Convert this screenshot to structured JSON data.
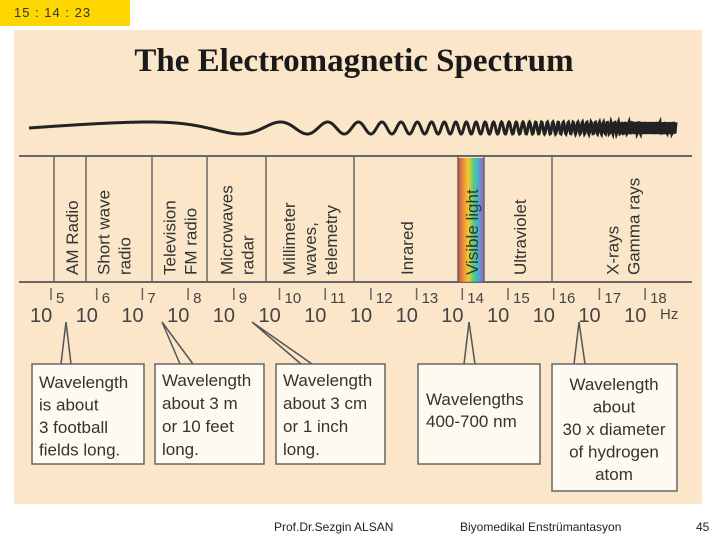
{
  "clock": "15 : 14 : 23",
  "title": "The Electromagnetic Spectrum",
  "bands": [
    {
      "lines": [
        "AM Radio"
      ]
    },
    {
      "lines": [
        "Short wave",
        "radio"
      ]
    },
    {
      "lines": [
        "Television",
        "FM radio"
      ]
    },
    {
      "lines": [
        "Microwaves",
        "radar"
      ]
    },
    {
      "lines": [
        "Millimeter",
        "waves,",
        "telemetry"
      ]
    },
    {
      "lines": [
        "Inrared"
      ]
    },
    {
      "lines": [
        "Visible light"
      ]
    },
    {
      "lines": [
        "Ultraviolet"
      ]
    },
    {
      "lines": [
        "X-rays",
        "Gamma rays"
      ]
    }
  ],
  "exponents": [
    "5",
    "6",
    "7",
    "8",
    "9",
    "10",
    "11",
    "12",
    "13",
    "14",
    "15",
    "16",
    "17",
    "18"
  ],
  "base": "10",
  "unit": "Hz",
  "callouts": [
    {
      "lines": [
        "Wavelength",
        "is about",
        "3 football",
        "fields long."
      ]
    },
    {
      "lines": [
        "Wavelength",
        "about 3 m",
        "or 10 feet",
        "long."
      ]
    },
    {
      "lines": [
        "Wavelength",
        "about 3 cm",
        "or 1 inch",
        "long."
      ]
    },
    {
      "lines": [
        "Wavelengths",
        "400-700 nm"
      ]
    },
    {
      "lines": [
        "Wavelength",
        "about",
        "30 x diameter",
        "of hydrogen",
        "atom"
      ]
    }
  ],
  "footer": {
    "author": "Prof.Dr.Sezgin ALSAN",
    "course": "Biyomedikal Enstrümantasyon",
    "page": "45"
  },
  "colors": {
    "clock_bg": "#ffd700",
    "slide_bg": "#fbe6c9",
    "ink": "#555555",
    "box_fill": "#fffaf0"
  }
}
